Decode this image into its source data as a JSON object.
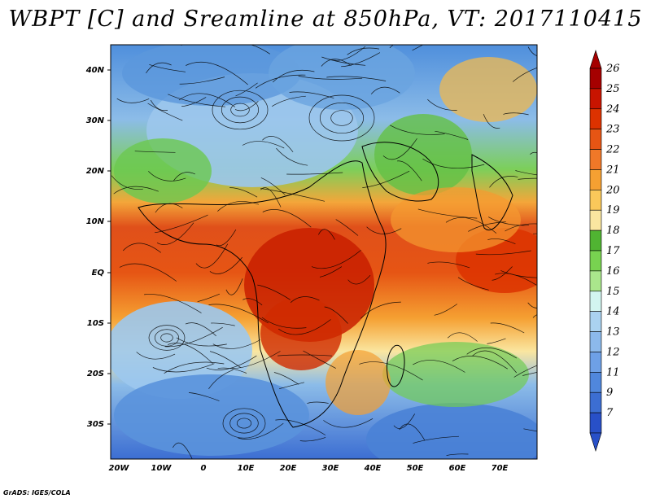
{
  "title": "WBPT [C] and Sreamline at 850hPa, VT: 2017110415",
  "credit": "GrADS: IGES/COLA",
  "lat_labels": [
    "40N",
    "30N",
    "20N",
    "10N",
    "EQ",
    "10S",
    "20S",
    "30S"
  ],
  "lon_labels": [
    "20W",
    "10W",
    "0",
    "10E",
    "20E",
    "30E",
    "40E",
    "50E",
    "60E",
    "70E"
  ],
  "colorbar": {
    "labels": [
      "26",
      "25",
      "24",
      "23",
      "22",
      "21",
      "20",
      "19",
      "18",
      "17",
      "16",
      "15",
      "14",
      "13",
      "12",
      "11",
      "9",
      "7"
    ],
    "colors": [
      "#a50000",
      "#c81400",
      "#dc3200",
      "#e65514",
      "#f07828",
      "#f5a032",
      "#fac85a",
      "#fae6a0",
      "#50b432",
      "#78d250",
      "#aae68c",
      "#d2f5f0",
      "#aad2f0",
      "#8cb9eb",
      "#6ea0e6",
      "#5087dc",
      "#3c6ed2",
      "#2850c8"
    ]
  }
}
